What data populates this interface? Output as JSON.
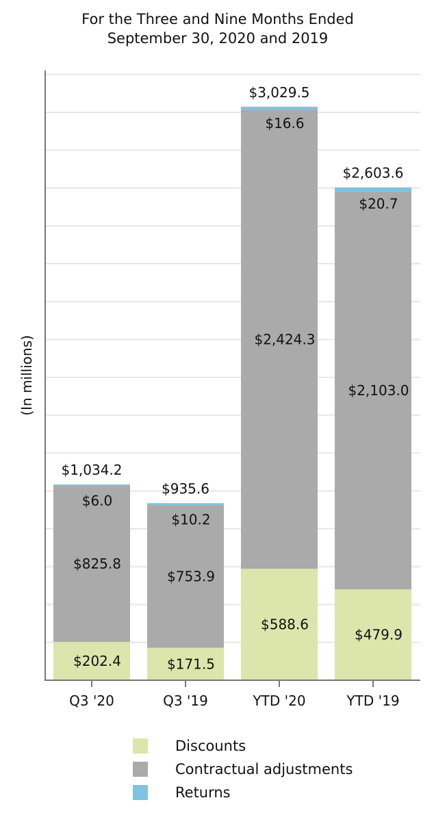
{
  "chart_data": {
    "type": "bar",
    "stacked": true,
    "title_lines": [
      "For the Three and Nine Months Ended",
      "September 30, 2020 and 2019"
    ],
    "ylabel": "(In millions)",
    "xlabel": "",
    "ylim": [
      0,
      3200
    ],
    "grid": true,
    "legend_position": "bottom",
    "categories": [
      "Q3 '20",
      "Q3 '19",
      "YTD '20",
      "YTD '19"
    ],
    "totals": [
      1034.2,
      935.6,
      3029.5,
      2603.6
    ],
    "total_labels": [
      "$1,034.2",
      "$935.6",
      "$3,029.5",
      "$2,603.6"
    ],
    "series": [
      {
        "name": "Discounts",
        "color": "#dce5ab",
        "values": [
          202.4,
          171.5,
          588.6,
          479.9
        ],
        "labels": [
          "$202.4",
          "$171.5",
          "$588.6",
          "$479.9"
        ]
      },
      {
        "name": "Contractual adjustments",
        "color": "#aaaaaa",
        "values": [
          825.8,
          753.9,
          2424.3,
          2103.0
        ],
        "labels": [
          "$825.8",
          "$753.9",
          "$2,424.3",
          "$2,103.0"
        ]
      },
      {
        "name": "Returns",
        "color": "#7ec3df",
        "values": [
          6.0,
          10.2,
          16.6,
          20.7
        ],
        "labels": [
          "$6.0",
          "$10.2",
          "$16.6",
          "$20.7"
        ]
      }
    ]
  }
}
